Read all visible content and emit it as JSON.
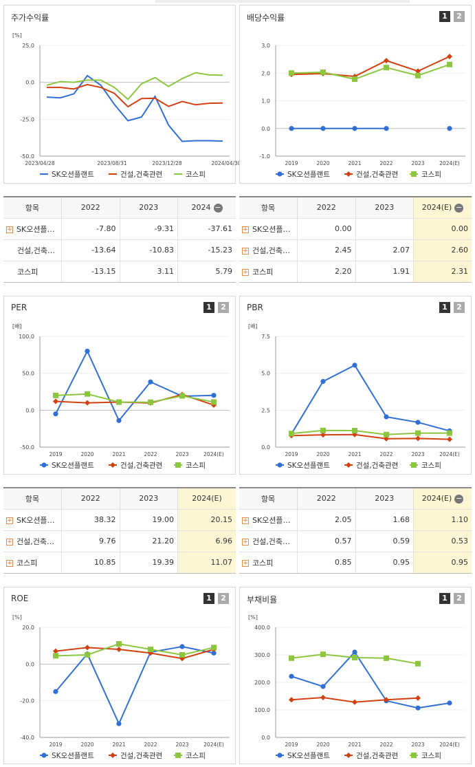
{
  "charts": [
    {
      "title": "주가수익률",
      "unit": "[%]",
      "buttons": false,
      "chart_data": {
        "type": "line",
        "x_labels": [
          "2023/04/28",
          "2023/08/31",
          "2023/12/28",
          "2024/04/30"
        ],
        "y_ticks": [
          "25.0",
          "0.0",
          "-25.0",
          "-50.0"
        ],
        "ylim": [
          -50,
          25
        ],
        "series": [
          {
            "name": "SK오션플랜트",
            "color": "#2f6fd6",
            "marker": "none",
            "values": [
              -10,
              -10.5,
              -7.8,
              4.5,
              -2,
              -15,
              -26,
              -23.5,
              -9.5,
              -29,
              -40,
              -39.5,
              -39.5,
              -39.8
            ]
          },
          {
            "name": "건설,건축관련",
            "color": "#d2400f",
            "marker": "none",
            "values": [
              -3.5,
              -3.5,
              -4.5,
              -1.5,
              -3.5,
              -7.5,
              -16.5,
              -11,
              -10.8,
              -16.3,
              -13,
              -15.2,
              -14.2,
              -14
            ]
          },
          {
            "name": "코스피",
            "color": "#8cc63e",
            "marker": "none",
            "values": [
              -2,
              0.5,
              0,
              1.5,
              1.5,
              -3.5,
              -11.5,
              -1,
              3.2,
              -2.8,
              2.5,
              6.5,
              5,
              4.8
            ]
          }
        ]
      }
    },
    {
      "title": "배당수익률",
      "unit": "",
      "buttons": true,
      "chart_data": {
        "type": "line",
        "x_labels": [
          "2019",
          "2020",
          "2021",
          "2022",
          "2023",
          "2024(E)"
        ],
        "y_ticks": [
          "3.0",
          "2.0",
          "1.0",
          "0.0",
          "-1.0"
        ],
        "ylim": [
          -1,
          3
        ],
        "series": [
          {
            "name": "SK오션플랜트",
            "color": "#2f6fd6",
            "marker": "circle",
            "values": [
              0,
              0,
              0,
              0,
              null,
              0
            ]
          },
          {
            "name": "건설,건축관련",
            "color": "#d2400f",
            "marker": "diamond",
            "values": [
              1.95,
              1.98,
              1.88,
              2.45,
              2.07,
              2.6
            ]
          },
          {
            "name": "코스피",
            "color": "#8cc63e",
            "marker": "square",
            "values": [
              2.0,
              2.03,
              1.78,
              2.2,
              1.91,
              2.31
            ]
          }
        ]
      }
    },
    {
      "title": "PER",
      "unit": "[배]",
      "buttons": true,
      "chart_data": {
        "type": "line",
        "x_labels": [
          "2019",
          "2020",
          "2021",
          "2022",
          "2023",
          "2024(E)"
        ],
        "y_ticks": [
          "100.0",
          "50.0",
          "0.0",
          "-50.0"
        ],
        "ylim": [
          -50,
          100
        ],
        "series": [
          {
            "name": "SK오션플랜트",
            "color": "#2f6fd6",
            "marker": "circle",
            "values": [
              -5,
              80,
              -14,
              38.32,
              19.0,
              20.15
            ]
          },
          {
            "name": "건설,건축관련",
            "color": "#d2400f",
            "marker": "diamond",
            "values": [
              12,
              10,
              11,
              9.76,
              21.2,
              6.96
            ]
          },
          {
            "name": "코스피",
            "color": "#8cc63e",
            "marker": "square",
            "values": [
              20,
              22,
              11,
              10.85,
              19.39,
              11.07
            ]
          }
        ]
      }
    },
    {
      "title": "PBR",
      "unit": "[배]",
      "buttons": true,
      "chart_data": {
        "type": "line",
        "x_labels": [
          "2019",
          "2020",
          "2021",
          "2022",
          "2023",
          "2024(E)"
        ],
        "y_ticks": [
          "7.5",
          "5.0",
          "2.5",
          "0.0"
        ],
        "ylim": [
          0,
          7.5
        ],
        "series": [
          {
            "name": "SK오션플랜트",
            "color": "#2f6fd6",
            "marker": "circle",
            "values": [
              0.9,
              4.45,
              5.55,
              2.05,
              1.68,
              1.1
            ]
          },
          {
            "name": "건설,건축관련",
            "color": "#d2400f",
            "marker": "diamond",
            "values": [
              0.78,
              0.83,
              0.85,
              0.57,
              0.59,
              0.53
            ]
          },
          {
            "name": "코스피",
            "color": "#8cc63e",
            "marker": "square",
            "values": [
              0.92,
              1.13,
              1.12,
              0.85,
              0.95,
              0.95
            ]
          }
        ]
      }
    },
    {
      "title": "ROE",
      "unit": "[%]",
      "buttons": true,
      "chart_data": {
        "type": "line",
        "x_labels": [
          "2019",
          "2020",
          "2021",
          "2022",
          "2023",
          "2024(E)"
        ],
        "y_ticks": [
          "20.0",
          "0.0",
          "-20.0",
          "-40.0"
        ],
        "ylim": [
          -40,
          20
        ],
        "series": [
          {
            "name": "SK오션플랜트",
            "color": "#2f6fd6",
            "marker": "circle",
            "values": [
              -15,
              5.5,
              -32.5,
              6.5,
              9.5,
              6
            ]
          },
          {
            "name": "건설,건축관련",
            "color": "#d2400f",
            "marker": "diamond",
            "values": [
              7,
              9,
              8,
              6,
              3,
              8
            ]
          },
          {
            "name": "코스피",
            "color": "#8cc63e",
            "marker": "square",
            "values": [
              4.5,
              5,
              11,
              8,
              5,
              9
            ]
          }
        ]
      }
    },
    {
      "title": "부채비율",
      "unit": "[%]",
      "buttons": true,
      "chart_data": {
        "type": "line",
        "x_labels": [
          "2019",
          "2020",
          "2021",
          "2022",
          "2023",
          "2024(E)"
        ],
        "y_ticks": [
          "400.0",
          "300.0",
          "200.0",
          "100.0",
          "0.0"
        ],
        "ylim": [
          0,
          400
        ],
        "series": [
          {
            "name": "SK오션플랜트",
            "color": "#2f6fd6",
            "marker": "circle",
            "values": [
              222,
              185,
              310,
              133,
              107,
              125
            ]
          },
          {
            "name": "건설,건축관련",
            "color": "#d2400f",
            "marker": "diamond",
            "values": [
              137,
              145,
              128,
              137,
              143,
              null
            ]
          },
          {
            "name": "코스피",
            "color": "#8cc63e",
            "marker": "square",
            "values": [
              288,
              302,
              290,
              288,
              268,
              null
            ]
          }
        ]
      }
    }
  ],
  "tables": [
    {
      "headers": [
        "항목",
        "2022",
        "2023",
        "2024"
      ],
      "header_extra": "−",
      "highlight_last": false,
      "rows": [
        {
          "label": "SK오션플…",
          "plus": true,
          "values": [
            "-7.80",
            "-9.31",
            "-37.61"
          ]
        },
        {
          "label": "건설,건축…",
          "plus": false,
          "values": [
            "-13.64",
            "-10.83",
            "-15.23"
          ]
        },
        {
          "label": "코스피",
          "plus": false,
          "values": [
            "-13.15",
            "3.11",
            "5.79"
          ]
        }
      ]
    },
    {
      "headers": [
        "항목",
        "2022",
        "2023",
        "2024(E)"
      ],
      "header_extra": "−",
      "highlight_last": true,
      "rows": [
        {
          "label": "SK오션플…",
          "plus": true,
          "values": [
            "0.00",
            "",
            "0.00"
          ]
        },
        {
          "label": "건설,건축…",
          "plus": true,
          "values": [
            "2.45",
            "2.07",
            "2.60"
          ]
        },
        {
          "label": "코스피",
          "plus": true,
          "values": [
            "2.20",
            "1.91",
            "2.31"
          ]
        }
      ]
    },
    {
      "headers": [
        "항목",
        "2022",
        "2023",
        "2024(E)"
      ],
      "header_extra": "",
      "highlight_last": true,
      "rows": [
        {
          "label": "SK오션플…",
          "plus": true,
          "values": [
            "38.32",
            "19.00",
            "20.15"
          ]
        },
        {
          "label": "건설,건축…",
          "plus": true,
          "values": [
            "9.76",
            "21.20",
            "6.96"
          ]
        },
        {
          "label": "코스피",
          "plus": true,
          "values": [
            "10.85",
            "19.39",
            "11.07"
          ]
        }
      ]
    },
    {
      "headers": [
        "항목",
        "2022",
        "2023",
        "2024(E)"
      ],
      "header_extra": "−",
      "highlight_last": true,
      "rows": [
        {
          "label": "SK오션플…",
          "plus": true,
          "values": [
            "2.05",
            "1.68",
            "1.10"
          ]
        },
        {
          "label": "건설,건축…",
          "plus": true,
          "values": [
            "0.57",
            "0.59",
            "0.53"
          ]
        },
        {
          "label": "코스피",
          "plus": true,
          "values": [
            "0.85",
            "0.95",
            "0.95"
          ]
        }
      ]
    }
  ],
  "buttons": {
    "one": "1",
    "two": "2"
  }
}
